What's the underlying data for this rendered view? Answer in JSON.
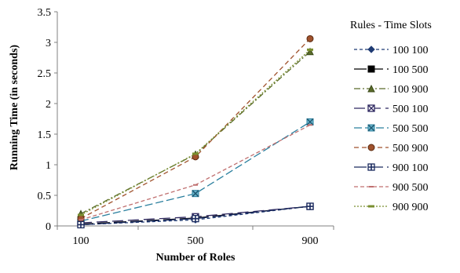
{
  "chart_data": {
    "type": "line",
    "title": "",
    "xlabel": "Number of Roles",
    "ylabel": "Running Time (in seconds)",
    "categories": [
      "100",
      "500",
      "900"
    ],
    "ylim": [
      0,
      3.5
    ],
    "yticks": [
      "0",
      "0.5",
      "1",
      "1.5",
      "2",
      "2.5",
      "3",
      "3.5"
    ],
    "grid": false,
    "legend_title": "Rules - Time Slots",
    "legend_position": "right",
    "series": [
      {
        "name": "100 100",
        "values": [
          0.02,
          0.1,
          0.32
        ],
        "color": "#1f3b73",
        "dash": "4,3",
        "marker": "diamond"
      },
      {
        "name": "100 500",
        "values": [
          0.03,
          0.13,
          0.32
        ],
        "color": "#000000",
        "dash": "16,5",
        "marker": "square"
      },
      {
        "name": "100 900",
        "values": [
          0.2,
          1.17,
          2.85
        ],
        "color": "#5a6b2a",
        "dash": "8,3,2,3",
        "marker": "triangle"
      },
      {
        "name": "500 100",
        "values": [
          0.05,
          0.15,
          0.32
        ],
        "color": "#2e2860",
        "dash": "14,6",
        "marker": "xsquare"
      },
      {
        "name": "500 500",
        "values": [
          0.08,
          0.53,
          1.7
        ],
        "color": "#2a7f9e",
        "dash": "10,4",
        "marker": "x"
      },
      {
        "name": "500 900",
        "values": [
          0.12,
          1.13,
          3.06
        ],
        "color": "#a0522d",
        "dash": "6,4",
        "marker": "circle"
      },
      {
        "name": "900 100",
        "values": [
          0.02,
          0.12,
          0.32
        ],
        "color": "#1a2a5e",
        "dash": "16,5",
        "marker": "plus"
      },
      {
        "name": "900 500",
        "values": [
          0.1,
          0.67,
          1.65
        ],
        "color": "#c07070",
        "dash": "5,3",
        "marker": "dash"
      },
      {
        "name": "900 900",
        "values": [
          0.18,
          1.18,
          2.88
        ],
        "color": "#7a8f30",
        "dash": "2,2",
        "marker": "bar"
      }
    ]
  }
}
